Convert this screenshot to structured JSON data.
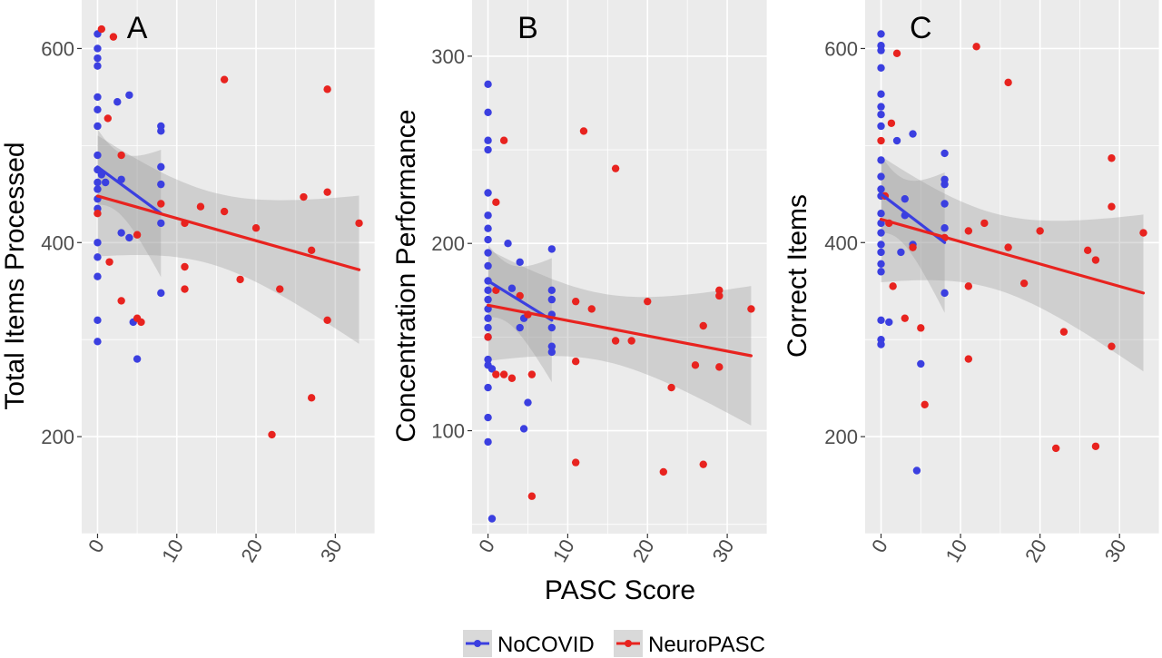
{
  "colors": {
    "panel_bg": "#ebebeb",
    "grid": "#ffffff",
    "ribbon": "#999999",
    "NoCOVID": "#3b3fe0",
    "NeuroPASC": "#e8231f"
  },
  "legend": {
    "placement": "bottom",
    "items": [
      {
        "label": "NoCOVID",
        "color": "#3b3fe0"
      },
      {
        "label": "NeuroPASC",
        "color": "#e8231f"
      }
    ]
  },
  "shared_xlabel": "PASC Score",
  "chart_data": [
    {
      "type": "scatter",
      "panel": "A",
      "xlabel": "",
      "ylabel": "Total Items Processed",
      "xlim": [
        -2,
        35
      ],
      "ylim": [
        100,
        650
      ],
      "xticks": [
        0,
        10,
        20,
        30
      ],
      "yticks": [
        200,
        400,
        600
      ],
      "grid": true,
      "series": [
        {
          "name": "NoCOVID",
          "points": [
            [
              0,
              615
            ],
            [
              0,
              600
            ],
            [
              0,
              590
            ],
            [
              0,
              582
            ],
            [
              0,
              550
            ],
            [
              0,
              537
            ],
            [
              0,
              520
            ],
            [
              0,
              490
            ],
            [
              0,
              475
            ],
            [
              0,
              462
            ],
            [
              0,
              455
            ],
            [
              0,
              445
            ],
            [
              0,
              435
            ],
            [
              0,
              400
            ],
            [
              0,
              385
            ],
            [
              0,
              365
            ],
            [
              0,
              320
            ],
            [
              0,
              298
            ],
            [
              0.5,
              470
            ],
            [
              1,
              462
            ],
            [
              2.5,
              545
            ],
            [
              3,
              465
            ],
            [
              3,
              410
            ],
            [
              4,
              552
            ],
            [
              4,
              405
            ],
            [
              4.5,
              318
            ],
            [
              5,
              280
            ],
            [
              8,
              520
            ],
            [
              8,
              515
            ],
            [
              8,
              478
            ],
            [
              8,
              460
            ],
            [
              8,
              420
            ],
            [
              8,
              348
            ]
          ],
          "fit": {
            "x": [
              0,
              8
            ],
            "y": [
              478,
              430
            ]
          }
        },
        {
          "name": "NeuroPASC",
          "points": [
            [
              0.5,
              620
            ],
            [
              2,
              612
            ],
            [
              1.3,
              528
            ],
            [
              3,
              490
            ],
            [
              0,
              430
            ],
            [
              1.5,
              380
            ],
            [
              3,
              340
            ],
            [
              5,
              408
            ],
            [
              5,
              322
            ],
            [
              5.5,
              318
            ],
            [
              8,
              440
            ],
            [
              11,
              420
            ],
            [
              11,
              375
            ],
            [
              11,
              352
            ],
            [
              13,
              437
            ],
            [
              16,
              568
            ],
            [
              16,
              432
            ],
            [
              18,
              362
            ],
            [
              20,
              415
            ],
            [
              22,
              202
            ],
            [
              23,
              352
            ],
            [
              26,
              447
            ],
            [
              27,
              392
            ],
            [
              27,
              240
            ],
            [
              29,
              558
            ],
            [
              29,
              452
            ],
            [
              29,
              320
            ],
            [
              33,
              420
            ]
          ],
          "fit": {
            "x": [
              0,
              33
            ],
            "y": [
              448,
              372
            ]
          }
        }
      ]
    },
    {
      "type": "scatter",
      "panel": "B",
      "xlabel": "PASC Score",
      "ylabel": "Concentration Performance",
      "xlim": [
        -2,
        35
      ],
      "ylim": [
        45,
        330
      ],
      "xticks": [
        0,
        10,
        20,
        30
      ],
      "yticks": [
        100,
        200,
        300
      ],
      "grid": true,
      "series": [
        {
          "name": "NoCOVID",
          "points": [
            [
              0,
              285
            ],
            [
              0,
              270
            ],
            [
              0,
              255
            ],
            [
              0,
              250
            ],
            [
              0,
              227
            ],
            [
              0,
              215
            ],
            [
              0,
              208
            ],
            [
              0,
              202
            ],
            [
              0,
              195
            ],
            [
              0,
              188
            ],
            [
              0,
              180
            ],
            [
              0,
              175
            ],
            [
              0,
              170
            ],
            [
              0,
              165
            ],
            [
              0,
              160
            ],
            [
              0,
              155
            ],
            [
              0,
              150
            ],
            [
              0,
              138
            ],
            [
              0,
              135
            ],
            [
              0,
              123
            ],
            [
              0,
              107
            ],
            [
              0,
              94
            ],
            [
              0.5,
              133
            ],
            [
              0.5,
              53
            ],
            [
              2.5,
              200
            ],
            [
              3,
              176
            ],
            [
              4,
              155
            ],
            [
              4,
              190
            ],
            [
              4.5,
              160
            ],
            [
              4.5,
              101
            ],
            [
              5,
              115
            ],
            [
              8,
              197
            ],
            [
              8,
              175
            ],
            [
              8,
              170
            ],
            [
              8,
              162
            ],
            [
              8,
              155
            ],
            [
              8,
              145
            ],
            [
              8,
              142
            ]
          ],
          "fit": {
            "x": [
              0,
              8
            ],
            "y": [
              180,
              159
            ]
          }
        },
        {
          "name": "NeuroPASC",
          "points": [
            [
              2,
              255
            ],
            [
              1,
              222
            ],
            [
              1,
              175
            ],
            [
              0,
              150
            ],
            [
              1,
              130
            ],
            [
              2,
              130
            ],
            [
              3,
              128
            ],
            [
              4,
              172
            ],
            [
              5,
              162
            ],
            [
              5.5,
              130
            ],
            [
              5.5,
              65
            ],
            [
              11,
              169
            ],
            [
              11,
              137
            ],
            [
              11,
              83
            ],
            [
              12,
              260
            ],
            [
              13,
              165
            ],
            [
              16,
              240
            ],
            [
              16,
              148
            ],
            [
              18,
              148
            ],
            [
              20,
              169
            ],
            [
              22,
              78
            ],
            [
              23,
              123
            ],
            [
              26,
              135
            ],
            [
              27,
              156
            ],
            [
              27,
              82
            ],
            [
              29,
              175
            ],
            [
              29,
              172
            ],
            [
              29,
              134
            ],
            [
              33,
              165
            ]
          ],
          "fit": {
            "x": [
              0,
              33
            ],
            "y": [
              167,
              140
            ]
          }
        }
      ]
    },
    {
      "type": "scatter",
      "panel": "C",
      "xlabel": "",
      "ylabel": "Correct Items",
      "xlim": [
        -2,
        35
      ],
      "ylim": [
        100,
        650
      ],
      "xticks": [
        0,
        10,
        20,
        30
      ],
      "yticks": [
        200,
        400,
        600
      ],
      "grid": true,
      "series": [
        {
          "name": "NoCOVID",
          "points": [
            [
              0,
              615
            ],
            [
              0,
              603
            ],
            [
              0,
              598
            ],
            [
              0,
              580
            ],
            [
              0,
              553
            ],
            [
              0,
              540
            ],
            [
              0,
              532
            ],
            [
              0,
              520
            ],
            [
              0,
              485
            ],
            [
              0,
              468
            ],
            [
              0,
              455
            ],
            [
              0,
              448
            ],
            [
              0,
              430
            ],
            [
              0,
              420
            ],
            [
              0,
              410
            ],
            [
              0,
              398
            ],
            [
              0,
              390
            ],
            [
              0,
              378
            ],
            [
              0,
              370
            ],
            [
              0,
              320
            ],
            [
              0,
              300
            ],
            [
              0,
              295
            ],
            [
              1,
              318
            ],
            [
              2,
              505
            ],
            [
              2.5,
              390
            ],
            [
              3,
              445
            ],
            [
              3,
              428
            ],
            [
              4,
              512
            ],
            [
              4,
              398
            ],
            [
              4.5,
              165
            ],
            [
              5,
              275
            ],
            [
              8,
              492
            ],
            [
              8,
              465
            ],
            [
              8,
              460
            ],
            [
              8,
              440
            ],
            [
              8,
              415
            ],
            [
              8,
              348
            ]
          ],
          "fit": {
            "x": [
              0,
              8
            ],
            "y": [
              450,
              400
            ]
          }
        },
        {
          "name": "NeuroPASC",
          "points": [
            [
              2,
              595
            ],
            [
              1.3,
              523
            ],
            [
              0,
              505
            ],
            [
              0.5,
              448
            ],
            [
              1,
              420
            ],
            [
              1.5,
              355
            ],
            [
              3,
              322
            ],
            [
              4,
              395
            ],
            [
              5,
              312
            ],
            [
              5.5,
              233
            ],
            [
              8,
              405
            ],
            [
              11,
              412
            ],
            [
              11,
              355
            ],
            [
              11,
              280
            ],
            [
              12,
              602
            ],
            [
              13,
              420
            ],
            [
              16,
              565
            ],
            [
              16,
              395
            ],
            [
              18,
              358
            ],
            [
              20,
              412
            ],
            [
              22,
              188
            ],
            [
              23,
              308
            ],
            [
              26,
              392
            ],
            [
              27,
              382
            ],
            [
              27,
              190
            ],
            [
              29,
              487
            ],
            [
              29,
              437
            ],
            [
              29,
              293
            ],
            [
              33,
              410
            ]
          ],
          "fit": {
            "x": [
              0,
              33
            ],
            "y": [
              424,
              348
            ]
          }
        }
      ]
    }
  ]
}
